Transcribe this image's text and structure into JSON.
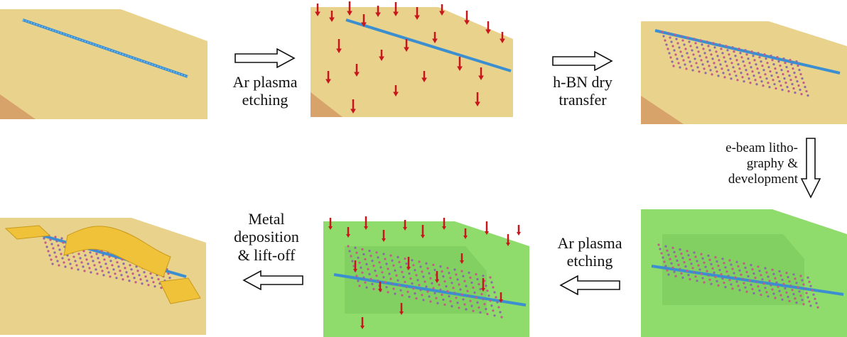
{
  "steps": {
    "ar_plasma_1": {
      "line1": "Ar plasma",
      "line2": "etching"
    },
    "hbn_transfer": {
      "line1": "h-BN dry",
      "line2": "transfer"
    },
    "ebeam": {
      "line1": "e-beam litho-",
      "line2": "graphy &",
      "line3": "development"
    },
    "ar_plasma_2": {
      "line1": "Ar plasma",
      "line2": "etching"
    },
    "metal": {
      "line1": "Metal",
      "line2": "deposition",
      "line3": "& lift-off"
    }
  },
  "colors": {
    "substrate_top": "#e9d28c",
    "substrate_side": "#d7a36b",
    "resist_green": "#8fdc6c",
    "tube_blue": "#3b8fd0",
    "hbn_lattice": "#8a6aa8",
    "plasma_red": "#c8161d",
    "gold": "#f0c23a"
  }
}
